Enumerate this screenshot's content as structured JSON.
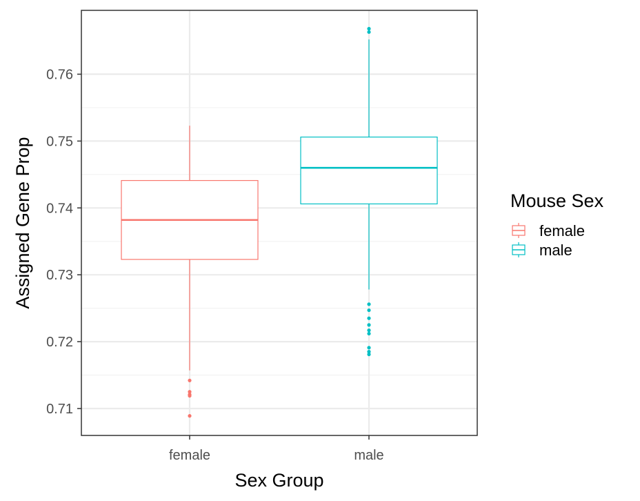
{
  "chart_data": {
    "type": "boxplot",
    "xlabel": "Sex Group",
    "ylabel": "Assigned Gene Prop",
    "categories": [
      "female",
      "male"
    ],
    "ylim": [
      0.706,
      0.77
    ],
    "yticks": [
      0.71,
      0.72,
      0.73,
      0.74,
      0.75,
      0.76
    ],
    "ytick_labels": [
      "0.71",
      "0.72",
      "0.73",
      "0.74",
      "0.75",
      "0.76"
    ],
    "grid": true,
    "legend": {
      "title": "Mouse Sex",
      "position": "right",
      "entries": [
        {
          "label": "female",
          "color": "#F8766D"
        },
        {
          "label": "male",
          "color": "#00BFC4"
        }
      ]
    },
    "boxes": [
      {
        "category": "female",
        "color": "#F8766D",
        "whisker_low": 0.7157,
        "q1": 0.7323,
        "median": 0.7382,
        "q3": 0.7441,
        "whisker_high": 0.7523,
        "outliers": [
          0.7142,
          0.7125,
          0.7121,
          0.7119,
          0.7089
        ]
      },
      {
        "category": "male",
        "color": "#00BFC4",
        "whisker_low": 0.7278,
        "q1": 0.7406,
        "median": 0.746,
        "q3": 0.7506,
        "whisker_high": 0.7652,
        "outliers": [
          0.7668,
          0.7663,
          0.7256,
          0.7247,
          0.7235,
          0.7225,
          0.7217,
          0.7212,
          0.7191,
          0.7185,
          0.7181
        ]
      }
    ]
  }
}
